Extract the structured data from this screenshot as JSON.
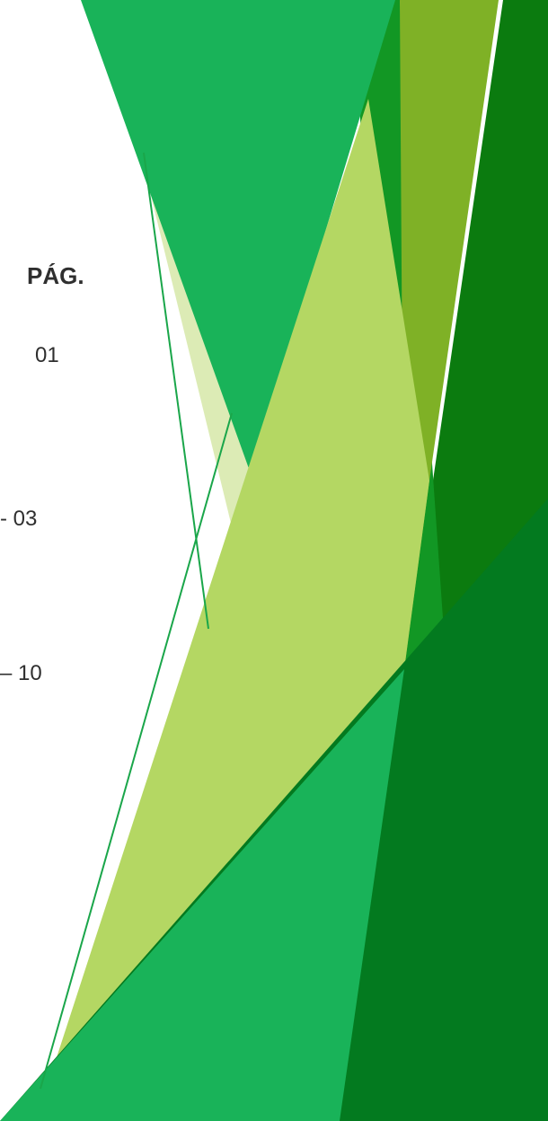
{
  "toc": {
    "header": "PÁG.",
    "pages": [
      "01",
      "- 03",
      "– 10"
    ]
  },
  "colors": {
    "background": "#ffffff",
    "text": "#2f2f2f",
    "green_bright": "#19b359",
    "green_mid": "#129724",
    "green_olive": "#7fb126",
    "green_light": "#b4d763",
    "green_pale": "#dcebb5",
    "green_dark": "#0b7b0f",
    "green_darker": "#037a1f"
  }
}
